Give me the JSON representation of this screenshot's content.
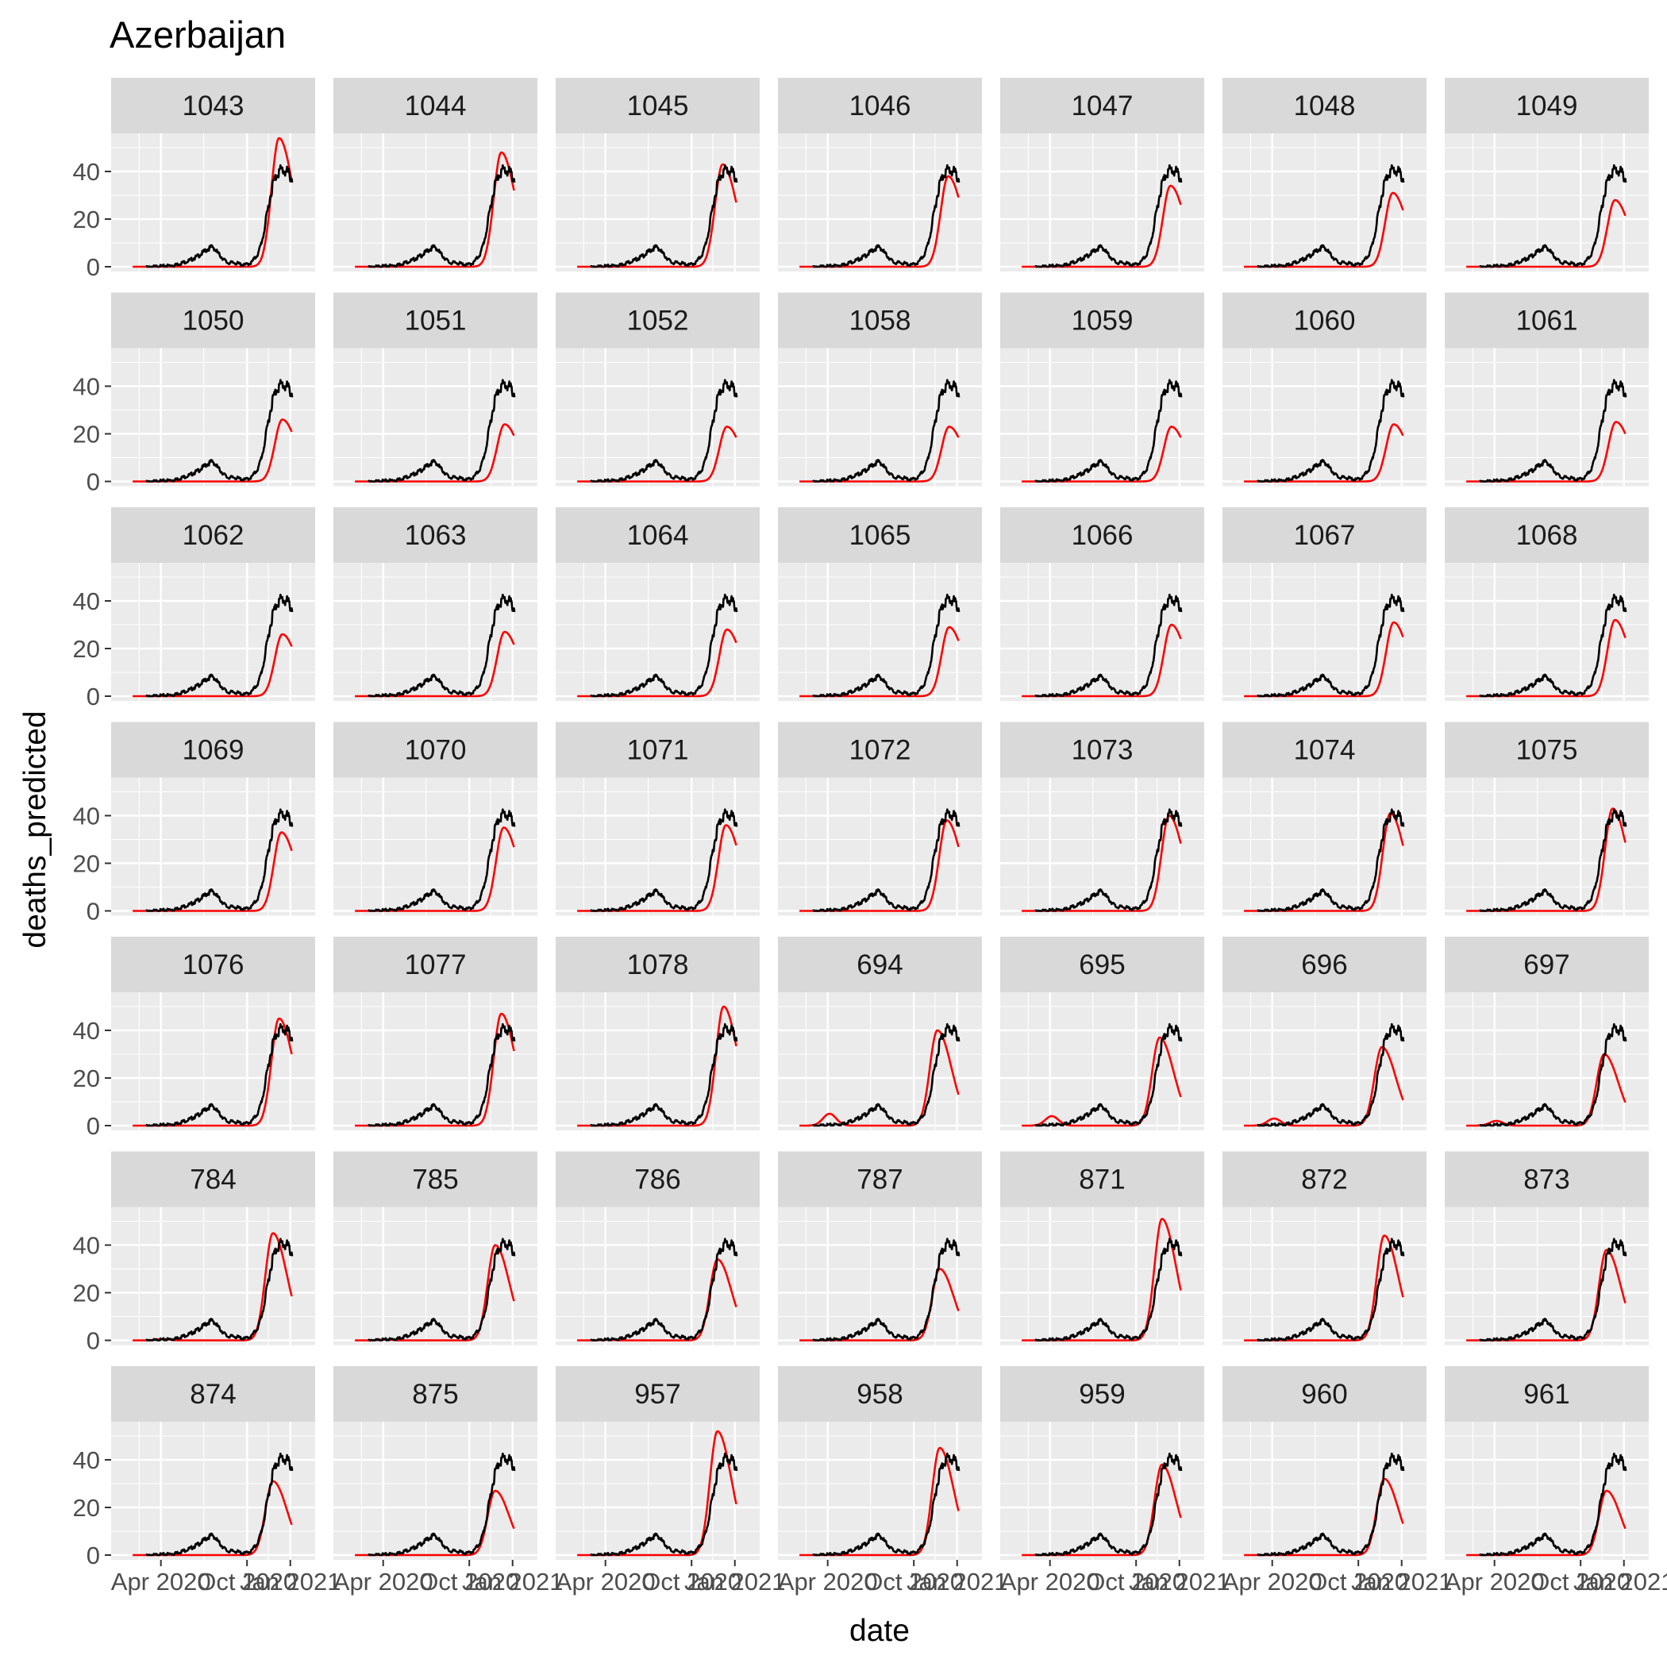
{
  "chart_data": {
    "type": "line",
    "title": "Azerbaijan",
    "xlabel": "date",
    "ylabel": "deaths_predicted",
    "layout": "facet_wrap",
    "facet_columns": 7,
    "grid": true,
    "x_tick_labels": [
      "Apr 2020",
      "Oct 2020",
      "Jan 2021"
    ],
    "y_ticks": [
      0,
      20,
      40
    ],
    "ylim": [
      -2,
      56
    ],
    "colors": {
      "actual": "#000000",
      "predicted": "#FF0000"
    },
    "actual_deaths": {
      "dates": [
        "2020-03-01",
        "2020-05-01",
        "2020-06-01",
        "2020-06-20",
        "2020-07-10",
        "2020-07-20",
        "2020-08-05",
        "2020-08-20",
        "2020-09-05",
        "2020-09-25",
        "2020-10-10",
        "2020-10-25",
        "2020-11-05",
        "2020-11-15",
        "2020-11-25",
        "2020-12-05",
        "2020-12-15",
        "2020-12-25",
        "2021-01-05"
      ],
      "values": [
        0,
        1,
        3,
        5,
        8,
        9,
        5,
        2,
        2,
        1,
        2,
        6,
        14,
        26,
        36,
        41,
        42,
        41,
        38
      ]
    },
    "facets": [
      {
        "label": "1043",
        "peak": 54,
        "peak_date": "2020-12-08",
        "early_peak": 0
      },
      {
        "label": "1044",
        "peak": 48,
        "peak_date": "2020-12-08",
        "early_peak": 0
      },
      {
        "label": "1045",
        "peak": 43,
        "peak_date": "2020-12-06",
        "early_peak": 0
      },
      {
        "label": "1046",
        "peak": 38,
        "peak_date": "2020-12-13",
        "early_peak": 0
      },
      {
        "label": "1047",
        "peak": 34,
        "peak_date": "2020-12-13",
        "early_peak": 0
      },
      {
        "label": "1048",
        "peak": 31,
        "peak_date": "2020-12-13",
        "early_peak": 0
      },
      {
        "label": "1049",
        "peak": 28,
        "peak_date": "2020-12-13",
        "early_peak": 0
      },
      {
        "label": "1050",
        "peak": 26,
        "peak_date": "2020-12-15",
        "early_peak": 0
      },
      {
        "label": "1051",
        "peak": 24,
        "peak_date": "2020-12-15",
        "early_peak": 0
      },
      {
        "label": "1052",
        "peak": 23,
        "peak_date": "2020-12-15",
        "early_peak": 0
      },
      {
        "label": "1058",
        "peak": 23,
        "peak_date": "2020-12-15",
        "early_peak": 0
      },
      {
        "label": "1059",
        "peak": 23,
        "peak_date": "2020-12-15",
        "early_peak": 0
      },
      {
        "label": "1060",
        "peak": 24,
        "peak_date": "2020-12-15",
        "early_peak": 0
      },
      {
        "label": "1061",
        "peak": 25,
        "peak_date": "2020-12-15",
        "early_peak": 0
      },
      {
        "label": "1062",
        "peak": 26,
        "peak_date": "2020-12-15",
        "early_peak": 0
      },
      {
        "label": "1063",
        "peak": 27,
        "peak_date": "2020-12-15",
        "early_peak": 0
      },
      {
        "label": "1064",
        "peak": 28,
        "peak_date": "2020-12-15",
        "early_peak": 0
      },
      {
        "label": "1065",
        "peak": 29,
        "peak_date": "2020-12-15",
        "early_peak": 0
      },
      {
        "label": "1066",
        "peak": 30,
        "peak_date": "2020-12-15",
        "early_peak": 0
      },
      {
        "label": "1067",
        "peak": 31,
        "peak_date": "2020-12-15",
        "early_peak": 0
      },
      {
        "label": "1068",
        "peak": 32,
        "peak_date": "2020-12-13",
        "early_peak": 0
      },
      {
        "label": "1069",
        "peak": 33,
        "peak_date": "2020-12-13",
        "early_peak": 0
      },
      {
        "label": "1070",
        "peak": 35,
        "peak_date": "2020-12-13",
        "early_peak": 0
      },
      {
        "label": "1071",
        "peak": 36,
        "peak_date": "2020-12-13",
        "early_peak": 0
      },
      {
        "label": "1072",
        "peak": 38,
        "peak_date": "2020-12-10",
        "early_peak": 0
      },
      {
        "label": "1073",
        "peak": 40,
        "peak_date": "2020-12-10",
        "early_peak": 0
      },
      {
        "label": "1074",
        "peak": 41,
        "peak_date": "2020-12-08",
        "early_peak": 0
      },
      {
        "label": "1075",
        "peak": 43,
        "peak_date": "2020-12-08",
        "early_peak": 0
      },
      {
        "label": "1076",
        "peak": 45,
        "peak_date": "2020-12-08",
        "early_peak": 0
      },
      {
        "label": "1077",
        "peak": 47,
        "peak_date": "2020-12-08",
        "early_peak": 0
      },
      {
        "label": "1078",
        "peak": 50,
        "peak_date": "2020-12-08",
        "early_peak": 0
      },
      {
        "label": "694",
        "peak": 40,
        "peak_date": "2020-11-20",
        "early_peak": 5
      },
      {
        "label": "695",
        "peak": 37,
        "peak_date": "2020-11-20",
        "early_peak": 4
      },
      {
        "label": "696",
        "peak": 33,
        "peak_date": "2020-11-20",
        "early_peak": 3
      },
      {
        "label": "697",
        "peak": 30,
        "peak_date": "2020-11-20",
        "early_peak": 2
      },
      {
        "label": "784",
        "peak": 45,
        "peak_date": "2020-11-25",
        "early_peak": 0.5
      },
      {
        "label": "785",
        "peak": 40,
        "peak_date": "2020-11-25",
        "early_peak": 0.3
      },
      {
        "label": "786",
        "peak": 34,
        "peak_date": "2020-11-25",
        "early_peak": 0.2
      },
      {
        "label": "787",
        "peak": 30,
        "peak_date": "2020-11-25",
        "early_peak": 0
      },
      {
        "label": "871",
        "peak": 51,
        "peak_date": "2020-11-25",
        "early_peak": 0
      },
      {
        "label": "872",
        "peak": 44,
        "peak_date": "2020-11-25",
        "early_peak": 0
      },
      {
        "label": "873",
        "peak": 38,
        "peak_date": "2020-11-25",
        "early_peak": 0
      },
      {
        "label": "874",
        "peak": 31,
        "peak_date": "2020-11-25",
        "early_peak": 0
      },
      {
        "label": "875",
        "peak": 27,
        "peak_date": "2020-11-25",
        "early_peak": 0
      },
      {
        "label": "957",
        "peak": 52,
        "peak_date": "2020-11-25",
        "early_peak": 0
      },
      {
        "label": "958",
        "peak": 45,
        "peak_date": "2020-11-25",
        "early_peak": 0
      },
      {
        "label": "959",
        "peak": 38,
        "peak_date": "2020-11-25",
        "early_peak": 0
      },
      {
        "label": "960",
        "peak": 32,
        "peak_date": "2020-11-25",
        "early_peak": 0
      },
      {
        "label": "961",
        "peak": 27,
        "peak_date": "2020-11-25",
        "early_peak": 0
      }
    ]
  }
}
